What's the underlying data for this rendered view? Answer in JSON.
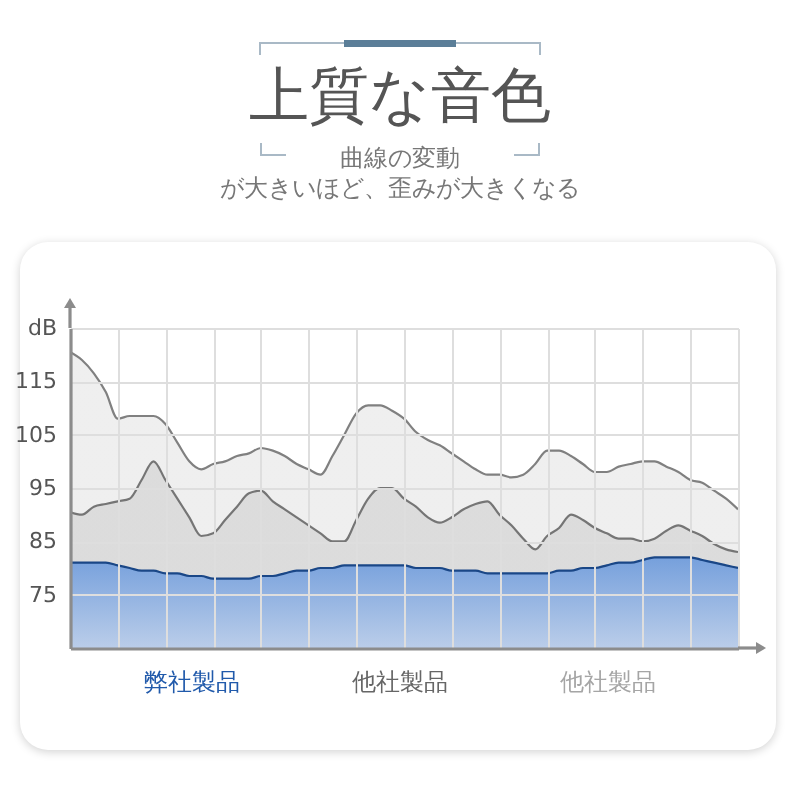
{
  "chart_data": {
    "type": "area",
    "title": "上質な音色",
    "subtitle": "曲線の変動が大きいほど、歪みが大きくなる",
    "categories": [
      null,
      null,
      null,
      null,
      null,
      null,
      null,
      null,
      null,
      null,
      null,
      null,
      null,
      null,
      null,
      null,
      null,
      null,
      null,
      null,
      null,
      null,
      null,
      null,
      null,
      null,
      null,
      null,
      null,
      null,
      null,
      null,
      null,
      null,
      null,
      null,
      null,
      null,
      null,
      null,
      null,
      null,
      null,
      null,
      null,
      null,
      null,
      null,
      null,
      null,
      null,
      null,
      null,
      null,
      null,
      null,
      null
    ],
    "series": [
      {
        "name": "弊社製品",
        "color": "#4a86dc",
        "values": [
          81,
          81,
          81,
          81,
          80.5,
          80,
          79.5,
          79.5,
          79,
          79,
          78.5,
          78.5,
          78,
          78,
          78,
          78,
          78.5,
          78.5,
          79,
          79.5,
          79.5,
          80,
          80,
          80.5,
          80.5,
          80.5,
          80.5,
          80.5,
          80.5,
          80,
          80,
          80,
          79.5,
          79.5,
          79.5,
          79,
          79,
          79,
          79,
          79,
          79,
          79.5,
          79.5,
          80,
          80,
          80.5,
          81,
          81,
          81.5,
          82,
          82,
          82,
          82,
          81.5,
          81,
          80.5,
          80
        ]
      },
      {
        "name": "他社製品",
        "color": "#d4d4d4",
        "values": [
          90.5,
          90,
          91.5,
          92,
          92.5,
          93,
          96.5,
          100,
          96.5,
          93,
          89.5,
          86,
          86.5,
          89,
          91.5,
          94,
          94.5,
          92.5,
          91,
          89.5,
          88,
          86.5,
          85,
          85,
          89,
          93,
          95,
          95,
          93,
          91.5,
          89.5,
          88.5,
          89.5,
          91,
          92,
          92.5,
          90,
          88,
          85.5,
          83.5,
          86,
          87.5,
          90,
          89,
          87.5,
          86.5,
          85.5,
          85.5,
          85,
          85.5,
          87,
          88,
          87,
          86,
          84.5,
          83.5,
          83
        ]
      },
      {
        "name": "他社製品",
        "color": "#e8e8e8",
        "values": [
          120.5,
          119,
          116.5,
          113,
          108,
          108.5,
          108.5,
          108.5,
          107,
          103.5,
          100,
          98.5,
          99.5,
          100,
          101,
          101.5,
          102.5,
          102,
          101,
          99.5,
          98.5,
          97.5,
          101,
          105,
          109,
          110.5,
          110.5,
          109.5,
          108,
          105.5,
          104,
          103,
          101.5,
          100,
          98.5,
          97.5,
          97.5,
          97,
          97.5,
          99.5,
          102,
          102,
          101,
          99.5,
          98,
          98,
          99,
          99.5,
          100,
          100,
          99,
          98,
          96.5,
          96,
          94.5,
          93,
          91
        ]
      }
    ],
    "ylim": [
      65,
      125
    ],
    "yticks": [
      75,
      85,
      95,
      105,
      115,
      {
        "value": 125,
        "label": "dB"
      }
    ],
    "grid": true,
    "legend": "bottom",
    "tick_labels": "y"
  }
}
